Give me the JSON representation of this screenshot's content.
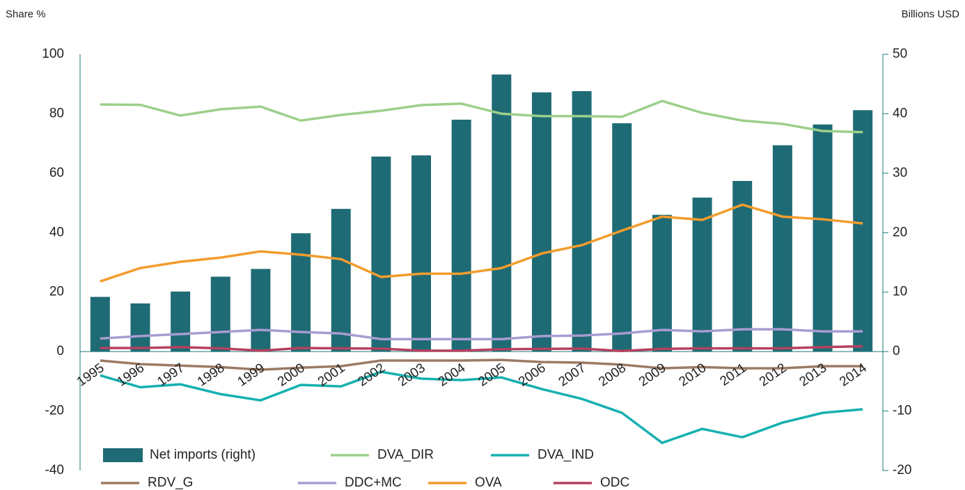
{
  "chart_data": {
    "type": "bar",
    "y_label": "Share %",
    "y2_label": "Billions USD",
    "categories": [
      "1995",
      "1996",
      "1997",
      "1998",
      "1999",
      "2000",
      "2001",
      "2002",
      "2003",
      "2004",
      "2005",
      "2006",
      "2007",
      "2008",
      "2009",
      "2010",
      "2011",
      "2012",
      "2013",
      "2014"
    ],
    "ylim": [
      -40,
      100
    ],
    "yticks": [
      -40,
      -20,
      0,
      20,
      40,
      60,
      80,
      100
    ],
    "y2lim": [
      -20,
      50
    ],
    "y2ticks": [
      -20,
      -10,
      0,
      10,
      20,
      30,
      40,
      50
    ],
    "series": [
      {
        "name": "Net imports (right)",
        "type": "bar",
        "axis": "y2",
        "color": "#1f6b75",
        "values": [
          9.2,
          8.1,
          10.1,
          12.6,
          13.9,
          19.9,
          24,
          32.8,
          33,
          39,
          46.6,
          43.6,
          43.8,
          38.4,
          23,
          25.9,
          28.7,
          34.7,
          38.2,
          40.6
        ]
      },
      {
        "name": "DVA_DIR",
        "type": "line",
        "color": "#9ccf8a",
        "values": [
          83.1,
          83,
          79.4,
          81.5,
          82.4,
          77.7,
          79.6,
          81,
          82.9,
          83.4,
          80,
          79.2,
          79.2,
          79,
          84.3,
          80.3,
          77.7,
          76.6,
          74.2,
          73.8
        ]
      },
      {
        "name": "DVA_IND",
        "type": "line",
        "color": "#16b0b0",
        "values": [
          -8,
          -12,
          -11,
          -14.3,
          -16.4,
          -11.2,
          -11.7,
          -6.8,
          -9.1,
          -9.6,
          -8.7,
          -12.6,
          -15.9,
          -20.6,
          -30.7,
          -26,
          -28.8,
          -23.9,
          -20.6,
          -19.4
        ]
      },
      {
        "name": "RDV_G",
        "type": "line",
        "color": "#9b7a64",
        "values": [
          -3,
          -4.2,
          -4.7,
          -5.2,
          -6.1,
          -5.4,
          -4.9,
          -3,
          -3,
          -3,
          -2.8,
          -3.5,
          -3.7,
          -4.4,
          -5.6,
          -5.2,
          -5.6,
          -5.6,
          -4.9,
          -4.9
        ]
      },
      {
        "name": "DDC+MC",
        "type": "line",
        "color": "#a89cd0",
        "values": [
          4.4,
          5.2,
          5.9,
          6.6,
          7.3,
          6.6,
          6.1,
          4.2,
          4.2,
          4.2,
          4.2,
          5.2,
          5.4,
          6.1,
          7.3,
          6.8,
          7.5,
          7.5,
          6.8,
          6.8
        ]
      },
      {
        "name": "OVA",
        "type": "line",
        "color": "#f39c2d",
        "values": [
          23.6,
          28.1,
          30.2,
          31.6,
          33.7,
          32.6,
          31.1,
          25.1,
          26.2,
          26.2,
          28.1,
          33,
          35.8,
          40.7,
          45.4,
          44.3,
          49.4,
          45.4,
          44.5,
          43.1
        ]
      },
      {
        "name": "ODC",
        "type": "line",
        "color": "#b5405f",
        "values": [
          1.2,
          1.2,
          1.5,
          1.1,
          0.3,
          1.2,
          1.1,
          1,
          0.3,
          0.3,
          0.8,
          0.9,
          1,
          0.2,
          0.9,
          1.1,
          1.1,
          1.1,
          1.5,
          1.8
        ]
      }
    ]
  }
}
